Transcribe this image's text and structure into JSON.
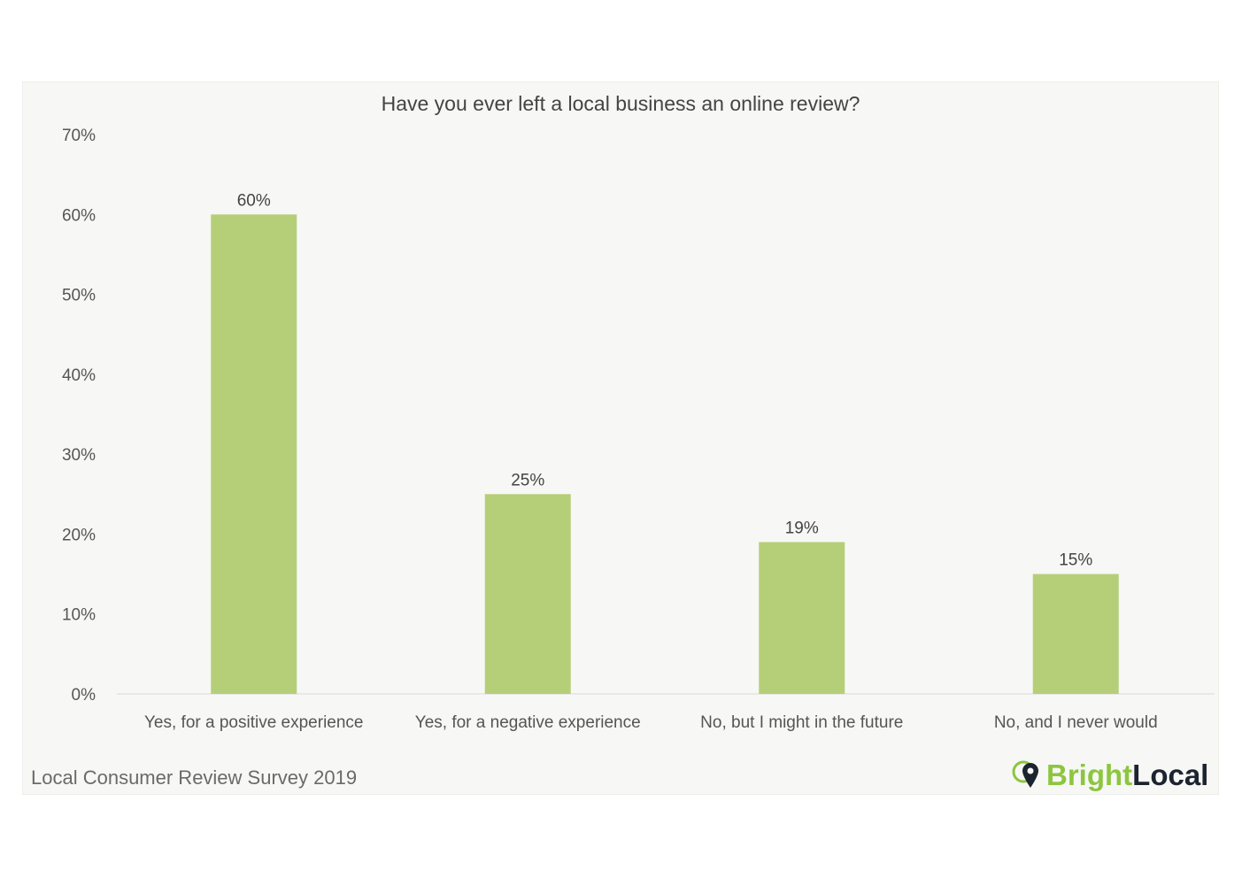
{
  "chart_data": {
    "type": "bar",
    "title": "Have you ever left a local business an online review?",
    "categories": [
      "Yes, for a positive experience",
      "Yes, for a negative experience",
      "No, but I might in the future",
      "No, and I never would"
    ],
    "values": [
      60,
      25,
      19,
      15
    ],
    "data_labels": [
      "60%",
      "25%",
      "19%",
      "15%"
    ],
    "ylim": [
      0,
      70
    ],
    "yticks": [
      0,
      10,
      20,
      30,
      40,
      50,
      60,
      70
    ],
    "ytick_labels": [
      "0%",
      "10%",
      "20%",
      "30%",
      "40%",
      "50%",
      "60%",
      "70%"
    ],
    "grid": false,
    "legend": "none",
    "bar_color": "#b5cf79"
  },
  "footer": {
    "source": "Local Consumer Review Survey 2019",
    "brand_part1": "Bright",
    "brand_part2": "Local",
    "brand_icon": "map-pin-icon",
    "brand_color": "#8cc63f"
  }
}
